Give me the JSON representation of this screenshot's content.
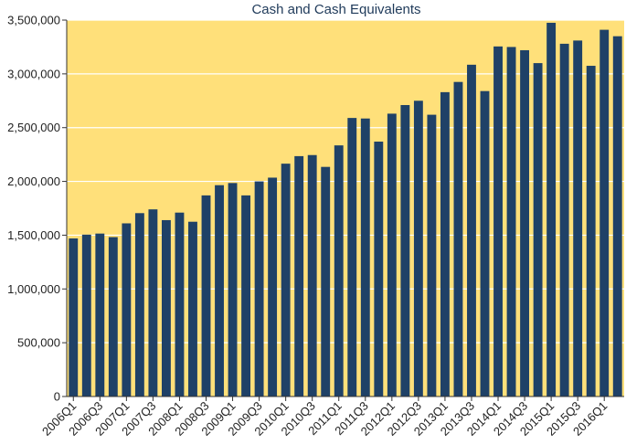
{
  "chart_data": {
    "type": "bar",
    "title": "Cash and Cash Equivalents",
    "xlabel": "",
    "ylabel": "",
    "ylim": [
      0,
      3500000
    ],
    "yticks": [
      0,
      500000,
      1000000,
      1500000,
      2000000,
      2500000,
      3000000,
      3500000
    ],
    "ytick_labels": [
      "0",
      "500,000",
      "1,000,000",
      "1,500,000",
      "2,000,000",
      "2,500,000",
      "3,000,000",
      "3,500,000"
    ],
    "grid": true,
    "colors": {
      "bar": "#1f4167",
      "plot_background": "#ffe07a",
      "gridline": "#ffffff",
      "title": "#1f3a5a"
    },
    "categories": [
      "2006Q1",
      "2006Q2",
      "2006Q3",
      "2006Q4",
      "2007Q1",
      "2007Q2",
      "2007Q3",
      "2007Q4",
      "2008Q1",
      "2008Q2",
      "2008Q3",
      "2008Q4",
      "2009Q1",
      "2009Q2",
      "2009Q3",
      "2009Q4",
      "2010Q1",
      "2010Q2",
      "2010Q3",
      "2010Q4",
      "2011Q1",
      "2011Q2",
      "2011Q3",
      "2011Q4",
      "2012Q1",
      "2012Q2",
      "2012Q3",
      "2012Q4",
      "2013Q1",
      "2013Q2",
      "2013Q3",
      "2013Q4",
      "2014Q1",
      "2014Q2",
      "2014Q3",
      "2014Q4",
      "2015Q1",
      "2015Q2",
      "2015Q3",
      "2015Q4",
      "2016Q1",
      "2016Q2"
    ],
    "visible_x_labels": [
      "2006Q1",
      "2006Q3",
      "2007Q1",
      "2007Q3",
      "2008Q1",
      "2008Q3",
      "2009Q1",
      "2009Q3",
      "2010Q1",
      "2010Q3",
      "2011Q1",
      "2011Q3",
      "2012Q1",
      "2012Q3",
      "2013Q1",
      "2013Q3",
      "2014Q1",
      "2014Q3",
      "2015Q1",
      "2015Q3",
      "2016Q1"
    ],
    "values": [
      1470000,
      1505000,
      1515000,
      1482000,
      1610000,
      1705000,
      1740000,
      1640000,
      1710000,
      1625000,
      1870000,
      1965000,
      1985000,
      1870000,
      2000000,
      2035000,
      2165000,
      2235000,
      2245000,
      2135000,
      2335000,
      2590000,
      2585000,
      2370000,
      2630000,
      2710000,
      2750000,
      2620000,
      2830000,
      2925000,
      3085000,
      2840000,
      3255000,
      3250000,
      3220000,
      3100000,
      3475000,
      3280000,
      3310000,
      3075000,
      3410000,
      3350000
    ]
  }
}
